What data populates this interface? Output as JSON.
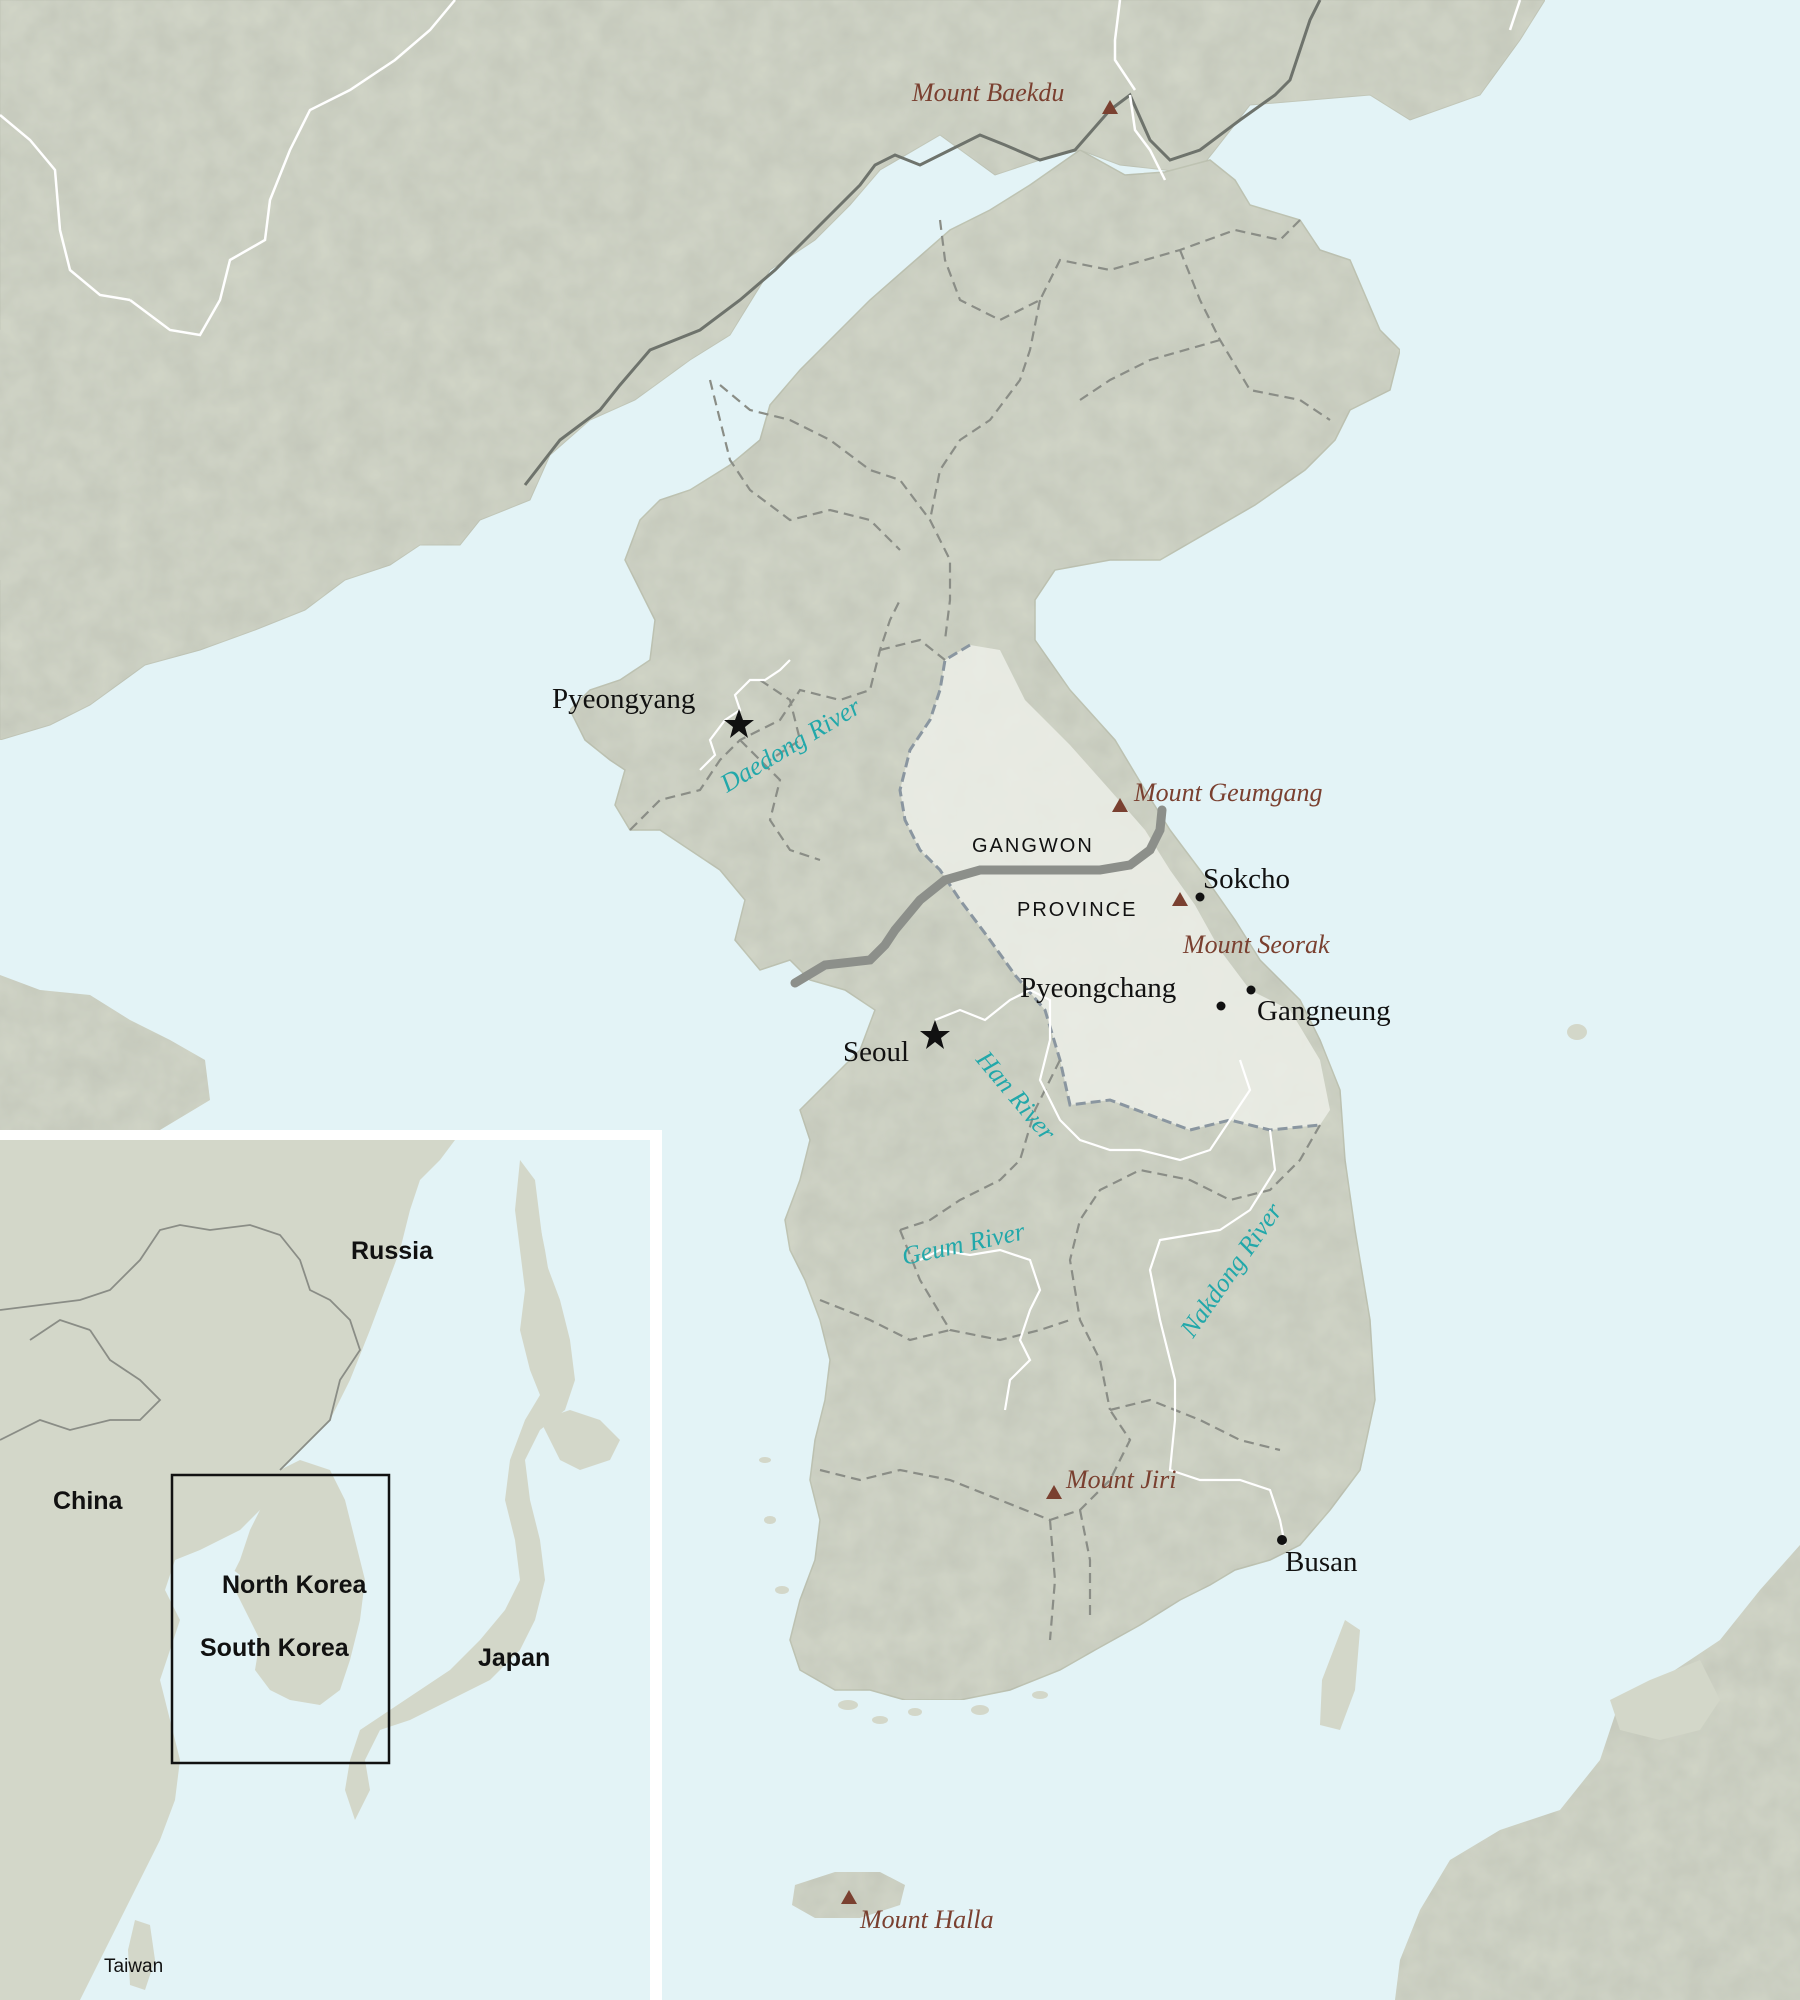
{
  "colors": {
    "water": "#e3f3f6",
    "land": "#d3d7c9",
    "land_shade": "#c2c7b6",
    "highlight_region": "#eceee7",
    "river": "#22a8aa",
    "mountain": "#7a4030",
    "border": "#7e837b",
    "dmz": "#8c8f8a",
    "text": "#111111"
  },
  "cities": {
    "pyeongyang": "Pyeongyang",
    "seoul": "Seoul",
    "sokcho": "Sokcho",
    "pyeongchang": "Pyeongchang",
    "gangneung": "Gangneung",
    "busan": "Busan"
  },
  "mountains": {
    "baekdu": "Mount Baekdu",
    "geumgang": "Mount Geumgang",
    "seorak": "Mount Seorak",
    "jiri": "Mount Jiri",
    "halla": "Mount Halla"
  },
  "rivers": {
    "daedong": "Daedong River",
    "han": "Han River",
    "geum": "Geum River",
    "nakdong": "Nakdong River"
  },
  "region": {
    "line1": "GANGWON",
    "line2": "PROVINCE"
  },
  "inset": {
    "russia": "Russia",
    "china": "China",
    "north_korea": "North Korea",
    "south_korea": "South Korea",
    "japan": "Japan",
    "taiwan": "Taiwan"
  }
}
